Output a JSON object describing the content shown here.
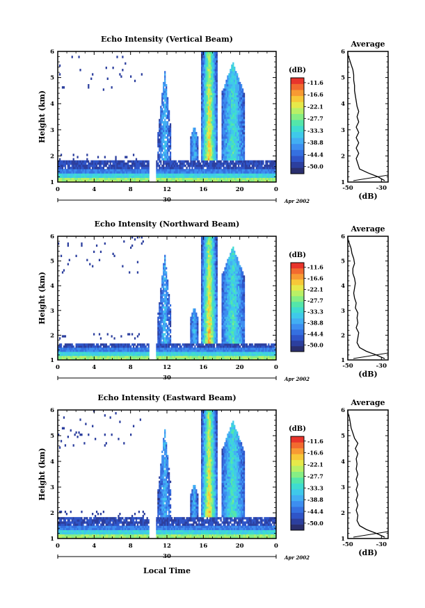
{
  "colormap": [
    "#2a2f6e",
    "#2c3f9e",
    "#2f55c8",
    "#3570e0",
    "#3d8ef0",
    "#42aef3",
    "#3fc9ea",
    "#3fdcd0",
    "#54e6aa",
    "#86ee84",
    "#b9f066",
    "#e6e94a",
    "#f7c838",
    "#f79a33",
    "#f26a2f",
    "#e8342b"
  ],
  "colorbar": {
    "unit": "(dB)",
    "labels": [
      "-11.6",
      "-16.6",
      "-22.1",
      "-27.7",
      "-33.3",
      "-38.8",
      "-44.4",
      "-50.0"
    ]
  },
  "x_axis": {
    "major_ticks": [
      "0",
      "4",
      "8",
      "12",
      "16",
      "20",
      "0"
    ],
    "date_tick": "30",
    "date_label": "Apr 2002",
    "xlabel": "Local Time"
  },
  "chart_data": [
    {
      "type": "heatmap",
      "title": "Echo Intensity (Vertical Beam)",
      "ylabel": "Height (km)",
      "y_ticks": [
        "1",
        "2",
        "3",
        "4",
        "5",
        "6"
      ],
      "xlim": [
        0,
        24
      ],
      "ylim": [
        1,
        6
      ],
      "value_range_db": [
        -50.0,
        -11.6
      ],
      "features": {
        "boundary_layer_top_km": 1.8,
        "gap_hours": [
          10.0,
          10.8
        ],
        "convective_columns_hours": [
          [
            11,
            12.5
          ],
          [
            14.5,
            15.5
          ],
          [
            15.8,
            17.5
          ],
          [
            18,
            20.5
          ]
        ],
        "max_echo_top_km": 6.0
      },
      "profile": {
        "title": "Average",
        "xlabel": "(dB)",
        "x_ticks": [
          "-50",
          "-30"
        ],
        "y_ticks": [
          "1",
          "2",
          "3",
          "4",
          "5",
          "6"
        ],
        "xlim": [
          -50,
          -26
        ],
        "heights_km": [
          1.05,
          1.2,
          1.35,
          1.5,
          1.7,
          1.9,
          2.1,
          2.3,
          2.5,
          2.7,
          2.9,
          3.1,
          3.3,
          3.5,
          3.7,
          3.9,
          4.1,
          4.3,
          4.5,
          4.7,
          4.9,
          5.1,
          5.3,
          5.5,
          5.7,
          5.9,
          6.0
        ],
        "values_db": [
          -28,
          -32,
          -38,
          -43,
          -44,
          -45,
          -43.5,
          -45,
          -43.5,
          -45,
          -43.5,
          -45,
          -43.5,
          -44.5,
          -43.5,
          -44.5,
          -45,
          -45.5,
          -46,
          -46,
          -46.5,
          -46.5,
          -47,
          -48,
          -49,
          -50,
          -50.5
        ]
      }
    },
    {
      "type": "heatmap",
      "title": "Echo Intensity (Northward Beam)",
      "ylabel": "Height (km)",
      "y_ticks": [
        "1",
        "2",
        "3",
        "4",
        "5",
        "6"
      ],
      "xlim": [
        0,
        24
      ],
      "ylim": [
        1,
        6
      ],
      "value_range_db": [
        -50.0,
        -11.6
      ],
      "features": {
        "boundary_layer_top_km": 1.7,
        "gap_hours": [
          10.0,
          10.8
        ],
        "convective_columns_hours": [
          [
            11,
            12.5
          ],
          [
            14.5,
            15.5
          ],
          [
            15.8,
            17.5
          ],
          [
            18,
            20.5
          ]
        ],
        "max_echo_top_km": 6.0
      },
      "profile": {
        "title": "Average",
        "xlabel": "(dB)",
        "x_ticks": [
          "-50",
          "-30"
        ],
        "y_ticks": [
          "1",
          "2",
          "3",
          "4",
          "5",
          "6"
        ],
        "xlim": [
          -50,
          -26
        ],
        "heights_km": [
          1.05,
          1.2,
          1.35,
          1.5,
          1.7,
          1.9,
          2.1,
          2.3,
          2.5,
          2.7,
          2.9,
          3.1,
          3.3,
          3.5,
          3.7,
          3.9,
          4.1,
          4.3,
          4.5,
          4.7,
          4.9,
          5.1,
          5.3,
          5.5,
          5.7,
          5.9,
          6.0
        ],
        "values_db": [
          -28,
          -33,
          -39,
          -43,
          -44.5,
          -44,
          -43.5,
          -45,
          -44,
          -44.5,
          -44,
          -45.5,
          -45,
          -46,
          -46.5,
          -46,
          -45.5,
          -46,
          -47,
          -47,
          -46,
          -46.5,
          -47.5,
          -48,
          -49,
          -50,
          -50.5
        ]
      }
    },
    {
      "type": "heatmap",
      "title": "Echo Intensity (Eastward Beam)",
      "ylabel": "Height (km)",
      "y_ticks": [
        "1",
        "2",
        "3",
        "4",
        "5",
        "6"
      ],
      "xlim": [
        0,
        24
      ],
      "ylim": [
        1,
        6
      ],
      "value_range_db": [
        -50.0,
        -11.6
      ],
      "features": {
        "boundary_layer_top_km": 1.8,
        "gap_hours": [
          10.0,
          10.8
        ],
        "convective_columns_hours": [
          [
            11,
            12.5
          ],
          [
            14.5,
            15.5
          ],
          [
            15.8,
            17.5
          ],
          [
            18,
            20.5
          ]
        ],
        "max_echo_top_km": 6.0
      },
      "profile": {
        "title": "Average",
        "xlabel": "(dB)",
        "x_ticks": [
          "-50",
          "-30"
        ],
        "y_ticks": [
          "1",
          "2",
          "3",
          "4",
          "5",
          "6"
        ],
        "xlim": [
          -50,
          -26
        ],
        "heights_km": [
          1.05,
          1.2,
          1.35,
          1.5,
          1.7,
          1.9,
          2.1,
          2.3,
          2.5,
          2.7,
          2.9,
          3.1,
          3.3,
          3.5,
          3.7,
          3.9,
          4.1,
          4.3,
          4.5,
          4.7,
          4.9,
          5.1,
          5.3,
          5.5,
          5.7,
          5.9,
          6.0
        ],
        "values_db": [
          -28,
          -33,
          -39,
          -43,
          -44.5,
          -44,
          -45,
          -44,
          -45,
          -44,
          -45,
          -44,
          -45,
          -44,
          -45,
          -44.5,
          -45,
          -44,
          -45.5,
          -44,
          -46,
          -47,
          -48,
          -48.5,
          -49,
          -50,
          -50.5
        ]
      }
    }
  ]
}
